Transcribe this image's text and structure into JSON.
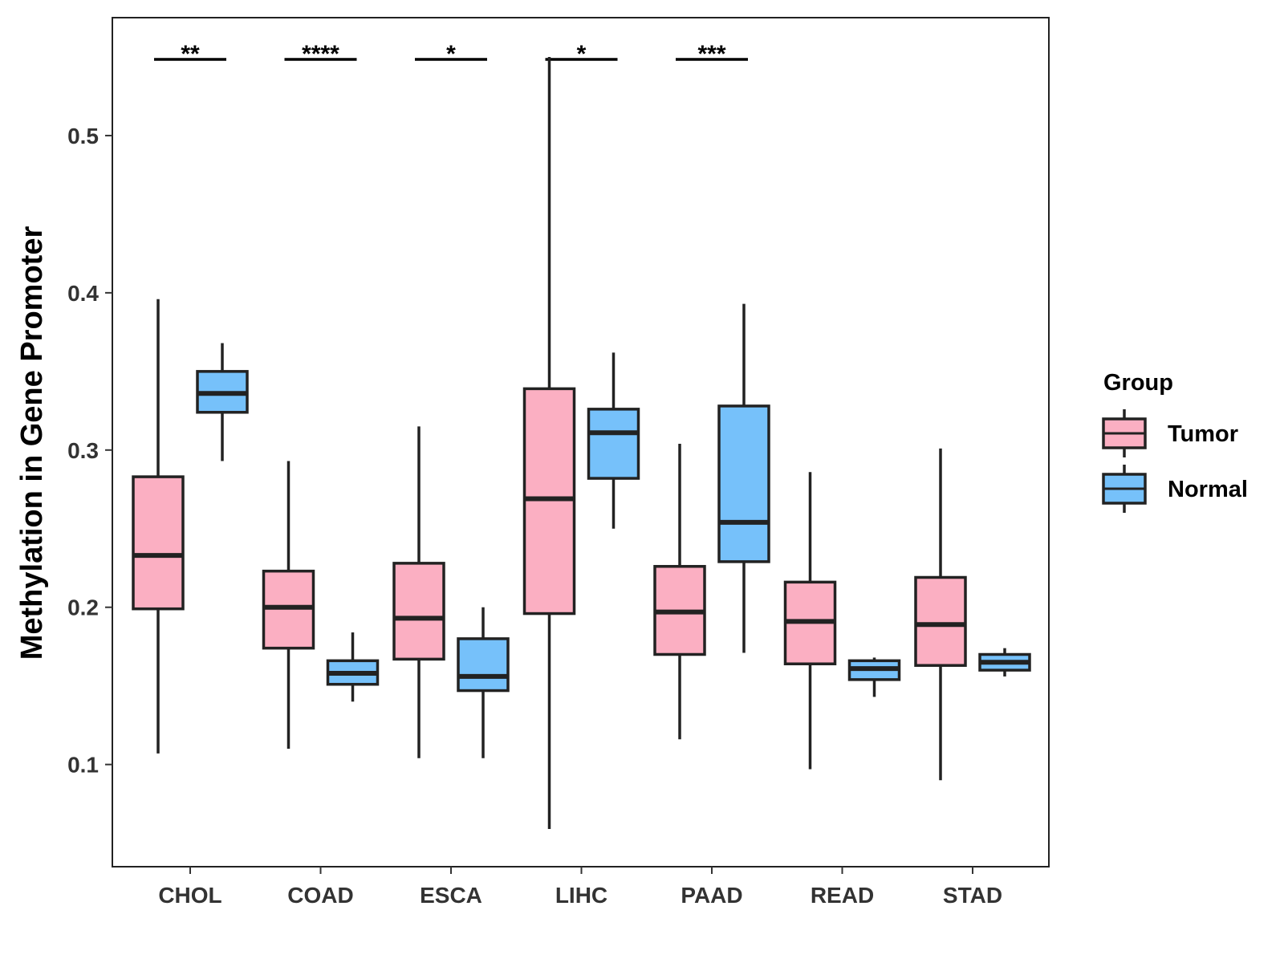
{
  "chart_data": {
    "type": "boxplot",
    "title": "",
    "xlabel": "",
    "ylabel": "Methylation in Gene Promoter",
    "ylim": [
      0.035,
      0.575
    ],
    "yticks": [
      0.1,
      0.2,
      0.3,
      0.4,
      0.5
    ],
    "ytick_labels": [
      "0.1",
      "0.2",
      "0.3",
      "0.4",
      "0.5"
    ],
    "categories": [
      "CHOL",
      "COAD",
      "ESCA",
      "LIHC",
      "PAAD",
      "READ",
      "STAD"
    ],
    "legend": {
      "title": "Group",
      "position": "right",
      "entries": [
        {
          "name": "Tumor",
          "color": "#FBAFC2"
        },
        {
          "name": "Normal",
          "color": "#76C1FA"
        }
      ]
    },
    "series": [
      {
        "name": "Tumor",
        "color": "#FBAFC2",
        "boxes": [
          {
            "category": "CHOL",
            "min": 0.107,
            "q1": 0.199,
            "median": 0.233,
            "q3": 0.283,
            "max": 0.396
          },
          {
            "category": "COAD",
            "min": 0.11,
            "q1": 0.174,
            "median": 0.2,
            "q3": 0.223,
            "max": 0.293
          },
          {
            "category": "ESCA",
            "min": 0.104,
            "q1": 0.167,
            "median": 0.193,
            "q3": 0.228,
            "max": 0.315
          },
          {
            "category": "LIHC",
            "min": 0.059,
            "q1": 0.196,
            "median": 0.269,
            "q3": 0.339,
            "max": 0.55
          },
          {
            "category": "PAAD",
            "min": 0.116,
            "q1": 0.17,
            "median": 0.197,
            "q3": 0.226,
            "max": 0.304
          },
          {
            "category": "READ",
            "min": 0.097,
            "q1": 0.164,
            "median": 0.191,
            "q3": 0.216,
            "max": 0.286
          },
          {
            "category": "STAD",
            "min": 0.09,
            "q1": 0.163,
            "median": 0.189,
            "q3": 0.219,
            "max": 0.301
          }
        ]
      },
      {
        "name": "Normal",
        "color": "#76C1FA",
        "boxes": [
          {
            "category": "CHOL",
            "min": 0.293,
            "q1": 0.324,
            "median": 0.336,
            "q3": 0.35,
            "max": 0.368
          },
          {
            "category": "COAD",
            "min": 0.14,
            "q1": 0.151,
            "median": 0.158,
            "q3": 0.166,
            "max": 0.184
          },
          {
            "category": "ESCA",
            "min": 0.104,
            "q1": 0.147,
            "median": 0.156,
            "q3": 0.18,
            "max": 0.2
          },
          {
            "category": "LIHC",
            "min": 0.25,
            "q1": 0.282,
            "median": 0.311,
            "q3": 0.326,
            "max": 0.362
          },
          {
            "category": "PAAD",
            "min": 0.171,
            "q1": 0.229,
            "median": 0.254,
            "q3": 0.328,
            "max": 0.393
          },
          {
            "category": "READ",
            "min": 0.143,
            "q1": 0.154,
            "median": 0.161,
            "q3": 0.166,
            "max": 0.168
          },
          {
            "category": "STAD",
            "min": 0.156,
            "q1": 0.16,
            "median": 0.165,
            "q3": 0.17,
            "max": 0.174
          }
        ]
      }
    ],
    "significance": [
      {
        "category": "CHOL",
        "label": "**"
      },
      {
        "category": "COAD",
        "label": "****"
      },
      {
        "category": "ESCA",
        "label": "*"
      },
      {
        "category": "LIHC",
        "label": "*"
      },
      {
        "category": "PAAD",
        "label": "***"
      }
    ],
    "grid": false
  }
}
